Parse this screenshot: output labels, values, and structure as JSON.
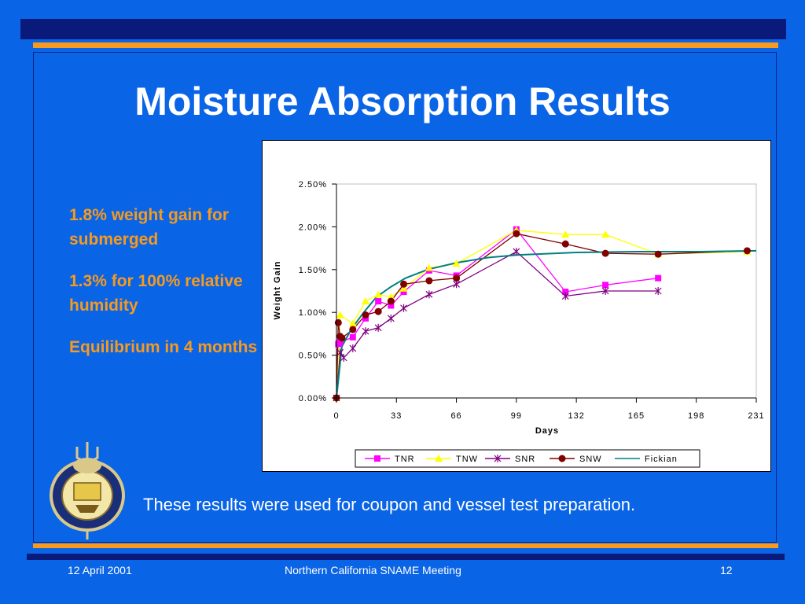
{
  "slide": {
    "title": "Moisture Absorption Results",
    "bullets": [
      "1.8% weight gain for submerged",
      "1.3% for 100% relative humidity",
      "Equilibrium in 4 months"
    ],
    "caption": "These results were used for coupon and vessel test preparation.",
    "footer_date": "12 April 2001",
    "footer_meeting": "Northern California SNAME Meeting",
    "page_number": "12"
  },
  "colors": {
    "background": "#0a64e6",
    "accent": "#f79a1e",
    "bar": "#0a1a7a"
  },
  "chart_data": {
    "type": "line",
    "xlabel": "Days",
    "ylabel": "Weight Gain",
    "xlim": [
      0,
      231
    ],
    "ylim": [
      0,
      0.025
    ],
    "x_ticks": [
      "0",
      "33",
      "66",
      "99",
      "132",
      "165",
      "198",
      "231"
    ],
    "y_ticks": [
      "0.00%",
      "0.50%",
      "1.00%",
      "1.50%",
      "2.00%",
      "2.50%"
    ],
    "legend_position": "bottom",
    "series": [
      {
        "name": "TNR",
        "color": "#ff00ff",
        "marker": "square",
        "points": [
          [
            0,
            0
          ],
          [
            1,
            0.0063
          ],
          [
            2,
            0.0065
          ],
          [
            9,
            0.0071
          ],
          [
            16,
            0.0093
          ],
          [
            23,
            0.0113
          ],
          [
            30,
            0.0108
          ],
          [
            37,
            0.0124
          ],
          [
            51,
            0.0149
          ],
          [
            66,
            0.0143
          ],
          [
            99,
            0.0197
          ],
          [
            126,
            0.0124
          ],
          [
            148,
            0.0132
          ],
          [
            177,
            0.014
          ]
        ]
      },
      {
        "name": "TNW",
        "color": "#ffff00",
        "marker": "triangle",
        "points": [
          [
            0,
            0
          ],
          [
            2,
            0.0097
          ],
          [
            9,
            0.0087
          ],
          [
            16,
            0.0113
          ],
          [
            23,
            0.0121
          ],
          [
            30,
            0.0118
          ],
          [
            37,
            0.0128
          ],
          [
            51,
            0.0152
          ],
          [
            66,
            0.0157
          ],
          [
            99,
            0.0196
          ],
          [
            126,
            0.0191
          ],
          [
            148,
            0.0191
          ],
          [
            177,
            0.0168
          ],
          [
            226,
            0.0171
          ]
        ]
      },
      {
        "name": "SNR",
        "color": "#800080",
        "marker": "x",
        "points": [
          [
            0,
            0
          ],
          [
            2,
            0.0053
          ],
          [
            4,
            0.0047
          ],
          [
            9,
            0.0058
          ],
          [
            16,
            0.0078
          ],
          [
            23,
            0.0082
          ],
          [
            30,
            0.0093
          ],
          [
            37,
            0.0105
          ],
          [
            51,
            0.0121
          ],
          [
            66,
            0.0133
          ],
          [
            99,
            0.0171
          ],
          [
            126,
            0.0119
          ],
          [
            148,
            0.0125
          ],
          [
            177,
            0.0125
          ]
        ]
      },
      {
        "name": "SNW",
        "color": "#800000",
        "marker": "circle",
        "points": [
          [
            0,
            0
          ],
          [
            1,
            0.0088
          ],
          [
            2,
            0.0072
          ],
          [
            3,
            0.007
          ],
          [
            9,
            0.008
          ],
          [
            16,
            0.0097
          ],
          [
            23,
            0.0101
          ],
          [
            30,
            0.0113
          ],
          [
            37,
            0.0133
          ],
          [
            51,
            0.0137
          ],
          [
            66,
            0.014
          ],
          [
            99,
            0.0192
          ],
          [
            126,
            0.018
          ],
          [
            148,
            0.0169
          ],
          [
            177,
            0.0168
          ],
          [
            226,
            0.0172
          ]
        ]
      },
      {
        "name": "Fickian",
        "color": "#008080",
        "marker": "none",
        "points": [
          [
            0,
            0
          ],
          [
            3,
            0.006
          ],
          [
            8,
            0.008
          ],
          [
            15,
            0.01
          ],
          [
            22,
            0.0118
          ],
          [
            30,
            0.013
          ],
          [
            38,
            0.014
          ],
          [
            50,
            0.015
          ],
          [
            66,
            0.0158
          ],
          [
            83,
            0.0164
          ],
          [
            99,
            0.0167
          ],
          [
            132,
            0.017
          ],
          [
            165,
            0.0171
          ],
          [
            198,
            0.0171
          ],
          [
            231,
            0.0172
          ]
        ]
      }
    ]
  }
}
